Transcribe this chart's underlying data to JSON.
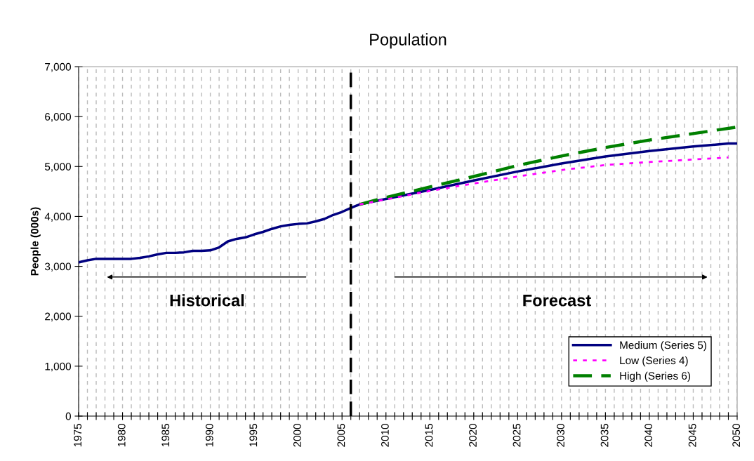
{
  "chart_data": {
    "type": "line",
    "title": "Population",
    "ylabel": "People (000s)",
    "series": [
      {
        "name": "Medium (Series 5)",
        "color": "#000080",
        "line_style": "solid",
        "x": [
          1975,
          1976,
          1977,
          1978,
          1979,
          1980,
          1981,
          1982,
          1983,
          1984,
          1985,
          1986,
          1987,
          1988,
          1989,
          1990,
          1991,
          1992,
          1993,
          1994,
          1995,
          1996,
          1997,
          1998,
          1999,
          2000,
          2001,
          2002,
          2003,
          2004,
          2005,
          2006,
          2007,
          2010,
          2015,
          2020,
          2025,
          2030,
          2035,
          2040,
          2045,
          2049,
          2050
        ],
        "values": [
          3080,
          3120,
          3150,
          3150,
          3150,
          3150,
          3150,
          3170,
          3200,
          3240,
          3270,
          3270,
          3280,
          3310,
          3310,
          3320,
          3380,
          3500,
          3550,
          3580,
          3640,
          3690,
          3750,
          3800,
          3830,
          3850,
          3860,
          3900,
          3950,
          4030,
          4090,
          4170,
          4240,
          4350,
          4530,
          4720,
          4900,
          5060,
          5200,
          5310,
          5400,
          5460,
          5460
        ]
      },
      {
        "name": "Low (Series 4)",
        "color": "#ff00ff",
        "line_style": "dotted",
        "x": [
          2007,
          2010,
          2015,
          2020,
          2025,
          2030,
          2035,
          2040,
          2045,
          2049
        ],
        "values": [
          4240,
          4340,
          4510,
          4660,
          4800,
          4930,
          5030,
          5090,
          5140,
          5180
        ]
      },
      {
        "name": "High (Series 6)",
        "color": "#008000",
        "line_style": "dashed",
        "x": [
          2007,
          2010,
          2015,
          2020,
          2025,
          2030,
          2035,
          2040,
          2045,
          2050
        ],
        "values": [
          4240,
          4380,
          4590,
          4800,
          5020,
          5210,
          5380,
          5530,
          5660,
          5790
        ]
      }
    ],
    "ref_lines": [
      {
        "axis": "x",
        "value": 2006,
        "color": "#000000",
        "line_style": "dashed"
      }
    ],
    "annotations": [
      "Historical",
      "Forecast"
    ],
    "xlim": [
      1975,
      2050
    ],
    "xticks": [
      1975,
      {
        "value": 1976,
        "label": null
      },
      {
        "value": 1977,
        "label": null
      },
      {
        "value": 1978,
        "label": null
      },
      {
        "value": 1979,
        "label": null
      },
      1980,
      {
        "value": 1981,
        "label": null
      },
      {
        "value": 1982,
        "label": null
      },
      {
        "value": 1983,
        "label": null
      },
      {
        "value": 1984,
        "label": null
      },
      1985,
      {
        "value": 1986,
        "label": null
      },
      {
        "value": 1987,
        "label": null
      },
      {
        "value": 1988,
        "label": null
      },
      {
        "value": 1989,
        "label": null
      },
      1990,
      {
        "value": 1991,
        "label": null
      },
      {
        "value": 1992,
        "label": null
      },
      {
        "value": 1993,
        "label": null
      },
      {
        "value": 1994,
        "label": null
      },
      1995,
      {
        "value": 1996,
        "label": null
      },
      {
        "value": 1997,
        "label": null
      },
      {
        "value": 1998,
        "label": null
      },
      {
        "value": 1999,
        "label": null
      },
      2000,
      {
        "value": 2001,
        "label": null
      },
      {
        "value": 2002,
        "label": null
      },
      {
        "value": 2003,
        "label": null
      },
      {
        "value": 2004,
        "label": null
      },
      2005,
      {
        "value": 2006,
        "label": null
      },
      {
        "value": 2007,
        "label": null
      },
      {
        "value": 2008,
        "label": null
      },
      {
        "value": 2009,
        "label": null
      },
      2010,
      {
        "value": 2011,
        "label": null
      },
      {
        "value": 2012,
        "label": null
      },
      {
        "value": 2013,
        "label": null
      },
      {
        "value": 2014,
        "label": null
      },
      2015,
      {
        "value": 2016,
        "label": null
      },
      {
        "value": 2017,
        "label": null
      },
      {
        "value": 2018,
        "label": null
      },
      {
        "value": 2019,
        "label": null
      },
      2020,
      {
        "value": 2021,
        "label": null
      },
      {
        "value": 2022,
        "label": null
      },
      {
        "value": 2023,
        "label": null
      },
      {
        "value": 2024,
        "label": null
      },
      2025,
      {
        "value": 2026,
        "label": null
      },
      {
        "value": 2027,
        "label": null
      },
      {
        "value": 2028,
        "label": null
      },
      {
        "value": 2029,
        "label": null
      },
      2030,
      {
        "value": 2031,
        "label": null
      },
      {
        "value": 2032,
        "label": null
      },
      {
        "value": 2033,
        "label": null
      },
      {
        "value": 2034,
        "label": null
      },
      2035,
      {
        "value": 2036,
        "label": null
      },
      {
        "value": 2037,
        "label": null
      },
      {
        "value": 2038,
        "label": null
      },
      {
        "value": 2039,
        "label": null
      },
      2040,
      {
        "value": 2041,
        "label": null
      },
      {
        "value": 2042,
        "label": null
      },
      {
        "value": 2043,
        "label": null
      },
      {
        "value": 2044,
        "label": null
      },
      2045,
      {
        "value": 2046,
        "label": null
      },
      {
        "value": 2047,
        "label": null
      },
      {
        "value": 2048,
        "label": null
      },
      {
        "value": 2049,
        "label": null
      },
      2050
    ],
    "ylim": [
      0,
      7000
    ],
    "yticks": [
      0,
      {
        "value": 1000,
        "label": "1,000"
      },
      {
        "value": 2000,
        "label": "2,000"
      },
      {
        "value": 3000,
        "label": "3,000"
      },
      {
        "value": 4000,
        "label": "4,000"
      },
      {
        "value": 5000,
        "label": "5,000"
      },
      {
        "value": 6000,
        "label": "6,000"
      },
      {
        "value": 7000,
        "label": "7,000"
      }
    ],
    "grid": "x",
    "legend": "bottom right",
    "marker": "none"
  }
}
